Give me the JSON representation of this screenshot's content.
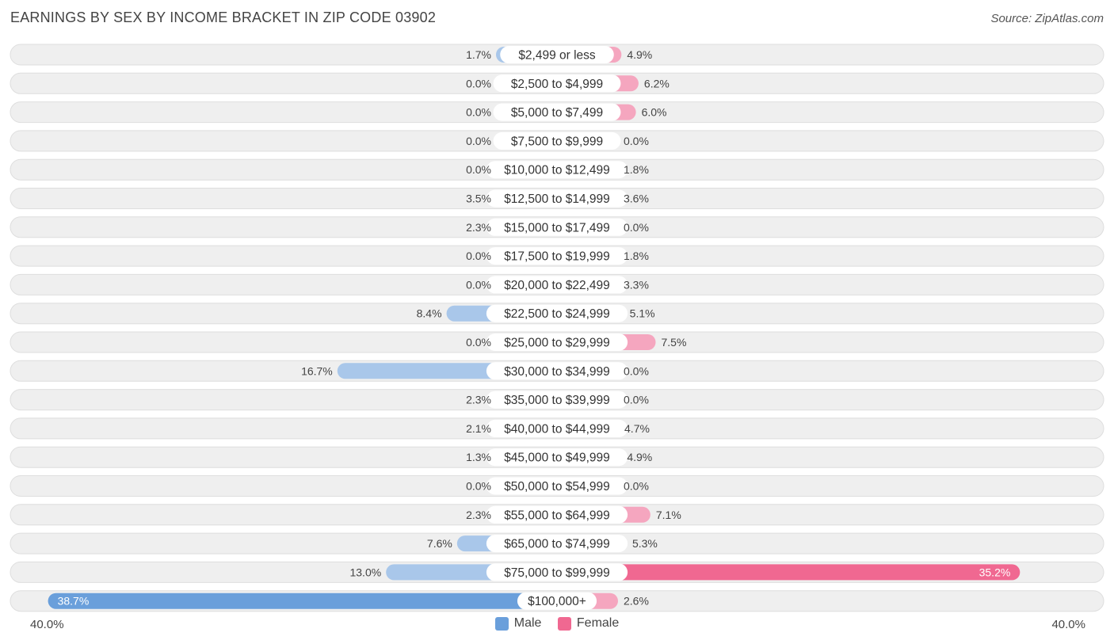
{
  "title": "EARNINGS BY SEX BY INCOME BRACKET IN ZIP CODE 03902",
  "source": "Source: ZipAtlas.com",
  "colors": {
    "male": "#a9c7ea",
    "male_strong": "#6a9fdb",
    "female": "#f5a6bf",
    "female_strong": "#f06891",
    "row_bg": "#efefef",
    "row_border": "#dedede"
  },
  "legend": {
    "male": "Male",
    "female": "Female"
  },
  "axis": {
    "left_label": "40.0%",
    "right_label": "40.0%"
  },
  "chart_data": {
    "type": "bar",
    "orientation": "horizontal-diverging",
    "title": "EARNINGS BY SEX BY INCOME BRACKET IN ZIP CODE 03902",
    "xlim": [
      -40,
      40
    ],
    "categories": [
      "$2,499 or less",
      "$2,500 to $4,999",
      "$5,000 to $7,499",
      "$7,500 to $9,999",
      "$10,000 to $12,499",
      "$12,500 to $14,999",
      "$15,000 to $17,499",
      "$17,500 to $19,999",
      "$20,000 to $22,499",
      "$22,500 to $24,999",
      "$25,000 to $29,999",
      "$30,000 to $34,999",
      "$35,000 to $39,999",
      "$40,000 to $44,999",
      "$45,000 to $49,999",
      "$50,000 to $54,999",
      "$55,000 to $64,999",
      "$65,000 to $74,999",
      "$75,000 to $99,999",
      "$100,000+"
    ],
    "series": [
      {
        "name": "Male",
        "values": [
          1.7,
          0.0,
          0.0,
          0.0,
          0.0,
          3.5,
          2.3,
          0.0,
          0.0,
          8.4,
          0.0,
          16.7,
          2.3,
          2.1,
          1.3,
          0.0,
          2.3,
          7.6,
          13.0,
          38.7
        ],
        "labels": [
          "1.7%",
          "0.0%",
          "0.0%",
          "0.0%",
          "0.0%",
          "3.5%",
          "2.3%",
          "0.0%",
          "0.0%",
          "8.4%",
          "0.0%",
          "16.7%",
          "2.3%",
          "2.1%",
          "1.3%",
          "0.0%",
          "2.3%",
          "7.6%",
          "13.0%",
          "38.7%"
        ]
      },
      {
        "name": "Female",
        "values": [
          4.9,
          6.2,
          6.0,
          0.0,
          1.8,
          3.6,
          0.0,
          1.8,
          3.3,
          5.1,
          7.5,
          0.0,
          0.0,
          4.7,
          4.9,
          0.0,
          7.1,
          5.3,
          35.2,
          2.6
        ],
        "labels": [
          "4.9%",
          "6.2%",
          "6.0%",
          "0.0%",
          "1.8%",
          "3.6%",
          "0.0%",
          "1.8%",
          "3.3%",
          "5.1%",
          "7.5%",
          "0.0%",
          "0.0%",
          "4.7%",
          "4.9%",
          "0.0%",
          "7.1%",
          "5.3%",
          "35.2%",
          "2.6%"
        ]
      }
    ]
  }
}
